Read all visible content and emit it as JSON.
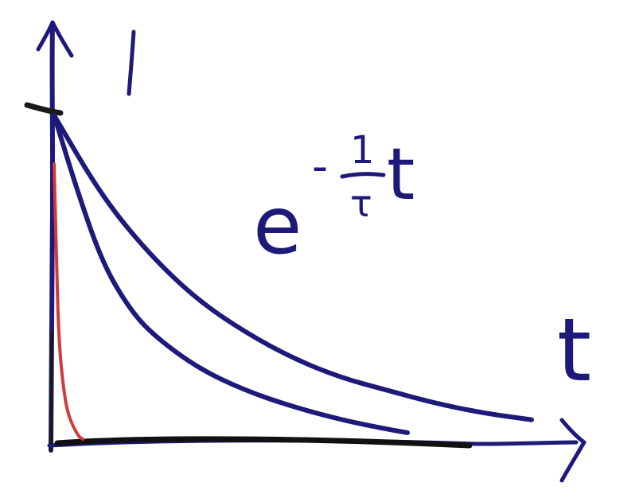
{
  "chart_data": {
    "type": "line",
    "title": "",
    "ylabel": "1",
    "xlabel": "t",
    "annotation": {
      "base": "e",
      "exponent_sign": "-",
      "exponent_numerator": "1",
      "exponent_denominator": "τ",
      "exponent_variable": "t"
    },
    "xlim": [
      0,
      1
    ],
    "ylim": [
      0,
      1
    ],
    "grid": false,
    "legend": "none",
    "series": [
      {
        "x": [
          0,
          0.1,
          0.2,
          0.3,
          0.4,
          0.5,
          0.6,
          0.7,
          0.8,
          0.9,
          1.0
        ],
        "values": [
          1.0,
          0.75,
          0.57,
          0.43,
          0.33,
          0.25,
          0.19,
          0.15,
          0.11,
          0.08,
          0.06
        ]
      },
      {
        "x": [
          0,
          0.05,
          0.1,
          0.15,
          0.2,
          0.3,
          0.4,
          0.5,
          0.6,
          0.7,
          0.74
        ],
        "values": [
          1.0,
          0.76,
          0.55,
          0.42,
          0.33,
          0.22,
          0.15,
          0.1,
          0.06,
          0.03,
          0.02
        ]
      },
      {
        "x": [
          0,
          0.005,
          0.01,
          0.02,
          0.03,
          0.05,
          0.06
        ],
        "values": [
          0.85,
          0.55,
          0.3,
          0.15,
          0.07,
          0.01,
          0.0
        ]
      }
    ]
  },
  "colors": {
    "ink_blue": "#1e1a7a",
    "ink_black": "#1a1a1a",
    "ink_red": "#d33a3a"
  }
}
